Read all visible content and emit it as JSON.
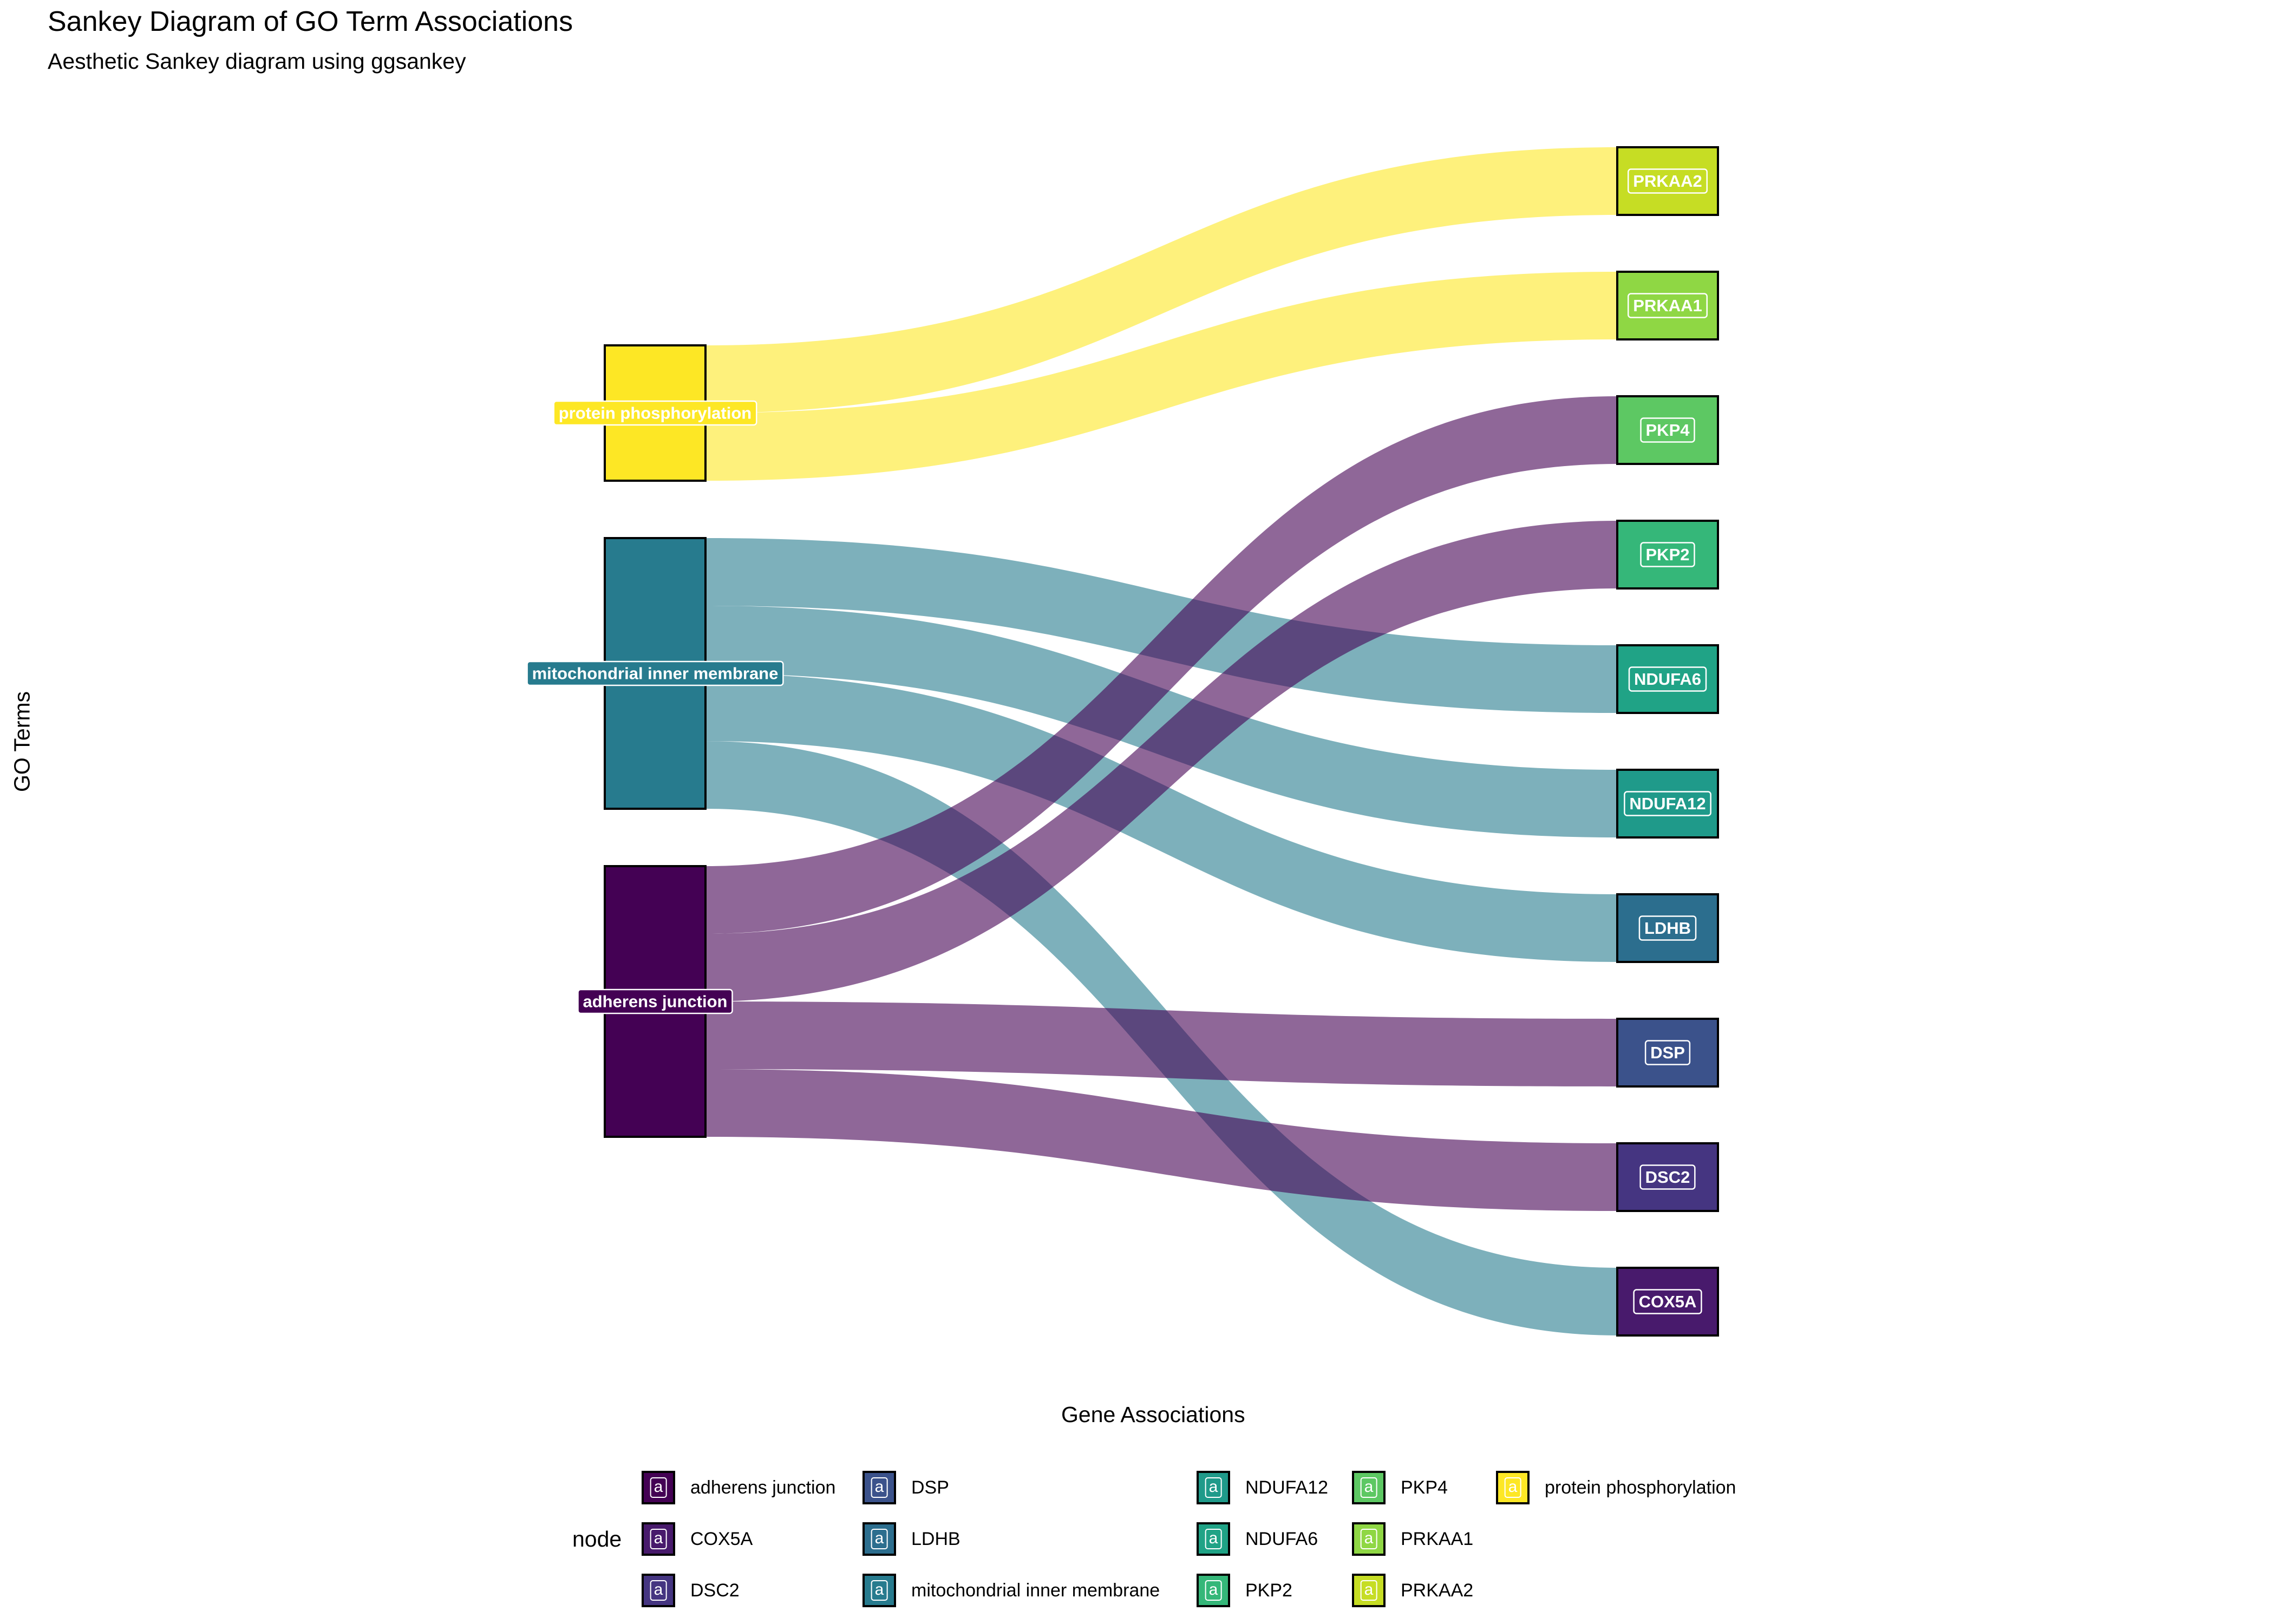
{
  "title": "Sankey Diagram of GO Term Associations",
  "subtitle": "Aesthetic Sankey diagram using ggsankey",
  "x_axis_title": "Gene Associations",
  "y_axis_title": "GO Terms",
  "legend": {
    "title": "node",
    "key_glyph": "a",
    "columns": [
      [
        "adherens junction",
        "COX5A",
        "DSC2"
      ],
      [
        "DSP",
        "LDHB",
        "mitochondrial inner membrane"
      ],
      [
        "NDUFA12",
        "NDUFA6",
        "PKP2"
      ],
      [
        "PKP4",
        "PRKAA1",
        "PRKAA2"
      ],
      [
        "protein phosphorylation"
      ]
    ]
  },
  "diagram": {
    "left_nodes": [
      {
        "name": "protein phosphorylation",
        "color": "#FDE725"
      },
      {
        "name": "mitochondrial inner membrane",
        "color": "#277B8E"
      },
      {
        "name": "adherens junction",
        "color": "#440154"
      }
    ],
    "right_nodes": [
      {
        "name": "PRKAA2",
        "color": "#C6DD24"
      },
      {
        "name": "PRKAA1",
        "color": "#8FD744"
      },
      {
        "name": "PKP4",
        "color": "#5DC863"
      },
      {
        "name": "PKP2",
        "color": "#35B779"
      },
      {
        "name": "NDUFA6",
        "color": "#20A386"
      },
      {
        "name": "NDUFA12",
        "color": "#1F9A8A"
      },
      {
        "name": "LDHB",
        "color": "#2C6E8E"
      },
      {
        "name": "DSP",
        "color": "#3B528B"
      },
      {
        "name": "DSC2",
        "color": "#453581"
      },
      {
        "name": "COX5A",
        "color": "#481A6C"
      }
    ],
    "links": [
      {
        "source": "protein phosphorylation",
        "target": "PRKAA2"
      },
      {
        "source": "protein phosphorylation",
        "target": "PRKAA1"
      },
      {
        "source": "mitochondrial inner membrane",
        "target": "NDUFA6"
      },
      {
        "source": "mitochondrial inner membrane",
        "target": "NDUFA12"
      },
      {
        "source": "mitochondrial inner membrane",
        "target": "LDHB"
      },
      {
        "source": "mitochondrial inner membrane",
        "target": "COX5A"
      },
      {
        "source": "adherens junction",
        "target": "PKP4"
      },
      {
        "source": "adherens junction",
        "target": "PKP2"
      },
      {
        "source": "adherens junction",
        "target": "DSP"
      },
      {
        "source": "adherens junction",
        "target": "DSC2"
      }
    ],
    "flow_opacity": 0.6
  }
}
